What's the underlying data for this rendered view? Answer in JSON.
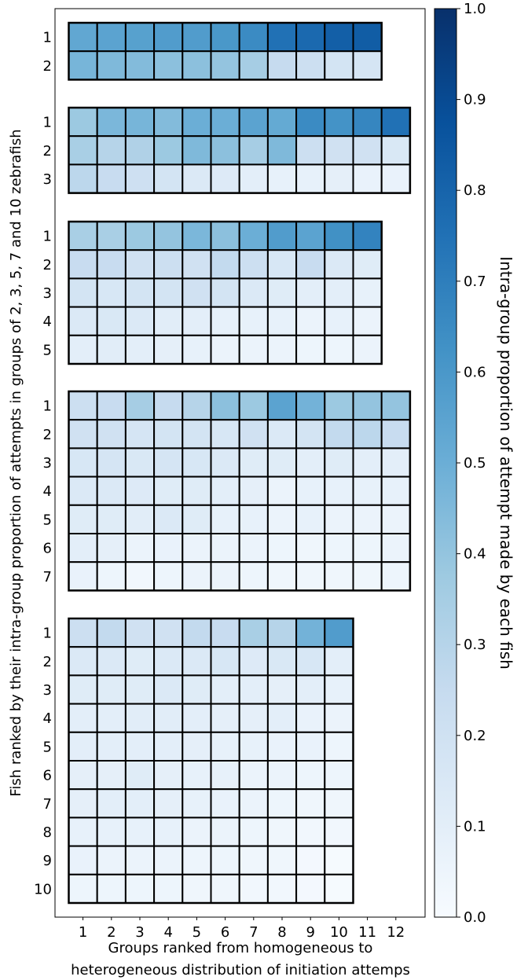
{
  "chart_data": {
    "type": "heatmap",
    "xlabel": "Groups ranked from homogeneous to\nheterogeneous distribution of initiation attemps",
    "ylabel": "Fish ranked by their intra-group proportion of attempts in groups of 2, 3, 5, 7 and 10 zebrafish",
    "x_ticks": [
      "1",
      "2",
      "3",
      "4",
      "5",
      "6",
      "7",
      "8",
      "9",
      "10",
      "11",
      "12"
    ],
    "colorbar": {
      "label": "Intra-group proportion of attempt made by each fish",
      "range": [
        0,
        1
      ],
      "ticks": [
        "0.0",
        "0.1",
        "0.2",
        "0.3",
        "0.4",
        "0.5",
        "0.6",
        "0.7",
        "0.8",
        "0.9",
        "1.0"
      ],
      "colormap": "Blues"
    },
    "panels": [
      {
        "group_size": 2,
        "row_labels": [
          "1",
          "2"
        ],
        "values": [
          [
            0.53,
            0.55,
            0.56,
            0.58,
            0.58,
            0.6,
            0.65,
            0.75,
            0.78,
            0.82,
            0.83
          ],
          [
            0.47,
            0.45,
            0.44,
            0.42,
            0.42,
            0.4,
            0.35,
            0.25,
            0.22,
            0.18,
            0.17
          ]
        ]
      },
      {
        "group_size": 3,
        "row_labels": [
          "1",
          "2",
          "3"
        ],
        "values": [
          [
            0.38,
            0.46,
            0.47,
            0.44,
            0.5,
            0.5,
            0.55,
            0.52,
            0.65,
            0.62,
            0.67,
            0.75
          ],
          [
            0.34,
            0.3,
            0.32,
            0.38,
            0.45,
            0.42,
            0.35,
            0.45,
            0.22,
            0.2,
            0.2,
            0.15
          ],
          [
            0.28,
            0.24,
            0.21,
            0.18,
            0.14,
            0.13,
            0.1,
            0.08,
            0.08,
            0.09,
            0.07,
            0.07
          ]
        ]
      },
      {
        "group_size": 5,
        "row_labels": [
          "1",
          "2",
          "3",
          "4",
          "5"
        ],
        "values": [
          [
            0.34,
            0.34,
            0.38,
            0.4,
            0.46,
            0.42,
            0.5,
            0.58,
            0.55,
            0.63,
            0.68
          ],
          [
            0.24,
            0.24,
            0.2,
            0.22,
            0.2,
            0.26,
            0.22,
            0.16,
            0.24,
            0.14,
            0.12
          ],
          [
            0.18,
            0.16,
            0.18,
            0.18,
            0.2,
            0.18,
            0.14,
            0.12,
            0.1,
            0.1,
            0.08
          ],
          [
            0.14,
            0.15,
            0.14,
            0.11,
            0.1,
            0.08,
            0.08,
            0.08,
            0.06,
            0.08,
            0.06
          ],
          [
            0.1,
            0.11,
            0.1,
            0.09,
            0.08,
            0.06,
            0.06,
            0.06,
            0.05,
            0.05,
            0.06
          ]
        ]
      },
      {
        "group_size": 7,
        "row_labels": [
          "1",
          "2",
          "3",
          "4",
          "5",
          "6",
          "7"
        ],
        "values": [
          [
            0.22,
            0.24,
            0.35,
            0.25,
            0.3,
            0.42,
            0.38,
            0.55,
            0.48,
            0.38,
            0.4,
            0.4
          ],
          [
            0.2,
            0.2,
            0.17,
            0.18,
            0.18,
            0.16,
            0.2,
            0.14,
            0.18,
            0.26,
            0.28,
            0.24
          ],
          [
            0.16,
            0.17,
            0.15,
            0.17,
            0.16,
            0.14,
            0.12,
            0.12,
            0.1,
            0.12,
            0.1,
            0.1
          ],
          [
            0.14,
            0.14,
            0.13,
            0.12,
            0.12,
            0.1,
            0.09,
            0.06,
            0.08,
            0.08,
            0.08,
            0.08
          ],
          [
            0.12,
            0.12,
            0.11,
            0.14,
            0.12,
            0.08,
            0.08,
            0.06,
            0.08,
            0.06,
            0.06,
            0.06
          ],
          [
            0.1,
            0.09,
            0.06,
            0.07,
            0.06,
            0.06,
            0.06,
            0.05,
            0.04,
            0.05,
            0.05,
            0.06
          ],
          [
            0.07,
            0.05,
            0.03,
            0.05,
            0.06,
            0.06,
            0.05,
            0.04,
            0.04,
            0.04,
            0.04,
            0.05
          ]
        ]
      },
      {
        "group_size": 10,
        "row_labels": [
          "1",
          "2",
          "3",
          "4",
          "5",
          "6",
          "7",
          "8",
          "9",
          "10"
        ],
        "values": [
          [
            0.22,
            0.26,
            0.2,
            0.2,
            0.26,
            0.24,
            0.34,
            0.3,
            0.48,
            0.58
          ],
          [
            0.14,
            0.14,
            0.12,
            0.14,
            0.14,
            0.16,
            0.13,
            0.15,
            0.16,
            0.1
          ],
          [
            0.12,
            0.12,
            0.12,
            0.14,
            0.12,
            0.1,
            0.1,
            0.09,
            0.1,
            0.08
          ],
          [
            0.1,
            0.1,
            0.11,
            0.11,
            0.1,
            0.09,
            0.09,
            0.1,
            0.07,
            0.06
          ],
          [
            0.1,
            0.1,
            0.1,
            0.1,
            0.09,
            0.08,
            0.08,
            0.07,
            0.07,
            0.05
          ],
          [
            0.09,
            0.09,
            0.12,
            0.09,
            0.08,
            0.08,
            0.06,
            0.06,
            0.05,
            0.05
          ],
          [
            0.09,
            0.1,
            0.1,
            0.09,
            0.08,
            0.07,
            0.06,
            0.05,
            0.04,
            0.04
          ],
          [
            0.08,
            0.08,
            0.08,
            0.08,
            0.06,
            0.06,
            0.05,
            0.04,
            0.03,
            0.03
          ],
          [
            0.07,
            0.06,
            0.06,
            0.06,
            0.05,
            0.05,
            0.04,
            0.04,
            0.02,
            0.01
          ],
          [
            0.05,
            0.05,
            0.05,
            0.05,
            0.04,
            0.04,
            0.03,
            0.03,
            0.02,
            0.01
          ]
        ]
      }
    ]
  }
}
